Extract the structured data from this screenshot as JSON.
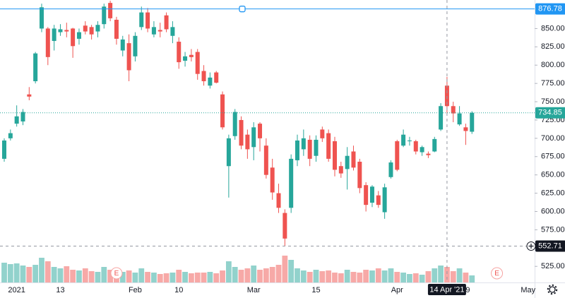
{
  "chart_data": {
    "type": "candlestick",
    "categories": [
      null,
      null,
      "2021",
      null,
      null,
      null,
      null,
      null,
      null,
      "13",
      null,
      null,
      null,
      null,
      null,
      null,
      null,
      null,
      null,
      null,
      null,
      "Feb",
      null,
      null,
      null,
      null,
      null,
      null,
      "10",
      null,
      null,
      null,
      null,
      null,
      null,
      null,
      null,
      null,
      null,
      null,
      "Mar",
      null,
      null,
      null,
      null,
      null,
      null,
      null,
      null,
      null,
      "15",
      null,
      null,
      null,
      null,
      null,
      null,
      null,
      null,
      null,
      null,
      null,
      null,
      "Apr",
      null,
      null,
      null,
      null,
      null,
      null,
      null,
      null,
      null,
      null,
      "19",
      null,
      null,
      null,
      null,
      null,
      null,
      null,
      null,
      null,
      "May"
    ],
    "open": [
      672,
      700,
      720,
      723,
      760,
      778,
      850,
      850,
      833,
      845,
      848,
      850,
      836,
      854,
      852,
      846,
      856,
      885,
      862,
      820,
      830,
      812,
      852,
      872,
      842,
      848,
      868,
      840,
      832,
      806,
      814,
      818,
      792,
      772,
      790,
      760,
      662,
      703,
      725,
      705,
      688,
      720,
      690,
      660,
      625,
      598,
      605,
      670,
      685,
      698,
      676,
      712,
      707,
      696,
      662,
      658,
      682,
      668,
      636,
      612,
      622,
      599,
      647,
      696,
      690,
      696,
      696,
      681,
      679,
      682,
      712,
      772,
      744,
      719,
      715,
      709,
      null,
      null,
      null,
      null,
      null,
      null,
      null,
      null,
      null
    ],
    "high": [
      700,
      712,
      745,
      740,
      770,
      818,
      884,
      852,
      855,
      856,
      858,
      851,
      850,
      860,
      855,
      860,
      884,
      888,
      866,
      840,
      842,
      845,
      880,
      878,
      860,
      858,
      872,
      860,
      838,
      818,
      822,
      822,
      800,
      790,
      792,
      764,
      705,
      740,
      730,
      712,
      722,
      722,
      700,
      672,
      638,
      603,
      678,
      705,
      712,
      704,
      704,
      716,
      712,
      702,
      668,
      688,
      690,
      672,
      640,
      636,
      628,
      638,
      670,
      698,
      712,
      702,
      698,
      690,
      682,
      702,
      748,
      784,
      750,
      744,
      720,
      737,
      null,
      null,
      null,
      null,
      null,
      null,
      null,
      null,
      null
    ],
    "low": [
      668,
      697,
      716,
      718,
      752,
      775,
      845,
      800,
      820,
      840,
      838,
      810,
      828,
      842,
      835,
      838,
      850,
      860,
      828,
      812,
      778,
      805,
      848,
      845,
      838,
      838,
      845,
      830,
      795,
      798,
      805,
      780,
      772,
      768,
      775,
      712,
      619,
      698,
      685,
      672,
      670,
      682,
      645,
      616,
      598,
      553,
      598,
      662,
      676,
      662,
      668,
      695,
      668,
      648,
      646,
      630,
      656,
      625,
      600,
      606,
      605,
      590,
      645,
      655,
      688,
      690,
      678,
      676,
      673,
      681,
      710,
      734,
      722,
      717,
      691,
      706,
      null,
      null,
      null,
      null,
      null,
      null,
      null,
      null,
      null
    ],
    "close": [
      697,
      707,
      730,
      736,
      757,
      816,
      879,
      811,
      850,
      849,
      846,
      826,
      845,
      846,
      842,
      855,
      880,
      864,
      836,
      835,
      793,
      840,
      872,
      850,
      852,
      846,
      849,
      852,
      804,
      812,
      811,
      788,
      778,
      783,
      776,
      715,
      700,
      736,
      690,
      685,
      715,
      700,
      650,
      626,
      605,
      563,
      672,
      697,
      700,
      672,
      698,
      700,
      672,
      657,
      652,
      676,
      660,
      632,
      609,
      634,
      609,
      633,
      667,
      657,
      705,
      697,
      682,
      688,
      677,
      699,
      744,
      744,
      734,
      734,
      710,
      734.85,
      null,
      null,
      null,
      null,
      null,
      null,
      null,
      null,
      null
    ],
    "volume": [
      28,
      26,
      27,
      24,
      22,
      25,
      35,
      30,
      22,
      20,
      23,
      18,
      17,
      20,
      16,
      15,
      22,
      18,
      20,
      15,
      17,
      14,
      20,
      15,
      14,
      12,
      13,
      14,
      18,
      15,
      13,
      14,
      14,
      15,
      13,
      17,
      30,
      22,
      18,
      20,
      24,
      18,
      20,
      22,
      25,
      38,
      32,
      20,
      17,
      15,
      18,
      16,
      17,
      14,
      13,
      18,
      15,
      14,
      18,
      17,
      20,
      17,
      20,
      15,
      14,
      12,
      13,
      11,
      16,
      20,
      24,
      22,
      16,
      20,
      14,
      10,
      null,
      null,
      null,
      null,
      null,
      null,
      null,
      null,
      null
    ],
    "up_color": "#26a69a",
    "down_color": "#ef5350",
    "ylim": [
      503,
      889
    ],
    "yticks": [
      {
        "value": 525,
        "label": "525.00"
      },
      {
        "value": 575,
        "label": "575.00"
      },
      {
        "value": 600,
        "label": "600.00"
      },
      {
        "value": 625,
        "label": "625.00"
      },
      {
        "value": 650,
        "label": "650.00"
      },
      {
        "value": 675,
        "label": "675.00"
      },
      {
        "value": 700,
        "label": "700.00"
      },
      {
        "value": 725,
        "label": "725.00"
      },
      {
        "value": 750,
        "label": "750.00"
      },
      {
        "value": 775,
        "label": "775.00"
      },
      {
        "value": 800,
        "label": "800.00"
      },
      {
        "value": 825,
        "label": "825.00"
      },
      {
        "value": 850,
        "label": "850.00"
      }
    ],
    "hline": {
      "price": 876.78,
      "color": "#2196f3"
    },
    "last_price": 734.85,
    "crosshair": {
      "price": 552.71,
      "x_label": "14 Apr '21"
    },
    "earnings_label": "E"
  }
}
